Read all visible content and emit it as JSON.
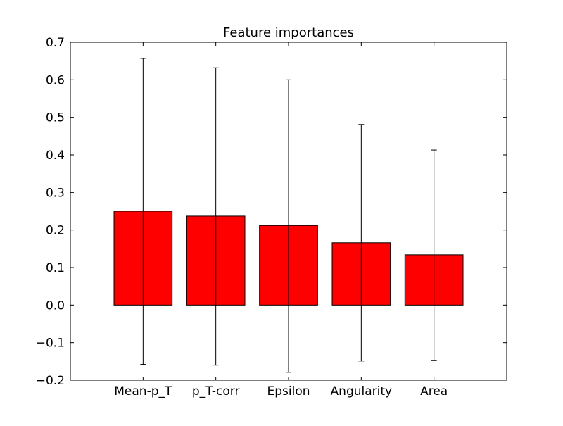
{
  "chart_data": {
    "type": "bar",
    "title": "Feature importances",
    "xlabel": "",
    "ylabel": "",
    "categories": [
      "Mean-p_T",
      "p_T-corr",
      "Epsilon",
      "Angularity",
      "Area"
    ],
    "values": [
      0.25,
      0.237,
      0.212,
      0.166,
      0.134
    ],
    "error_low": [
      -0.158,
      -0.16,
      -0.179,
      -0.149,
      -0.147
    ],
    "error_high": [
      0.657,
      0.632,
      0.6,
      0.481,
      0.413
    ],
    "ylim": [
      -0.2,
      0.7
    ],
    "yticks": [
      -0.2,
      -0.1,
      0.0,
      0.1,
      0.2,
      0.3,
      0.4,
      0.5,
      0.6,
      0.7
    ],
    "ytick_labels": [
      "−0.2",
      "−0.1",
      "0.0",
      "0.1",
      "0.2",
      "0.3",
      "0.4",
      "0.5",
      "0.6",
      "0.7"
    ],
    "bar_color": "#ff0000",
    "edge_color": "#000000",
    "grid": false,
    "legend": "none"
  }
}
